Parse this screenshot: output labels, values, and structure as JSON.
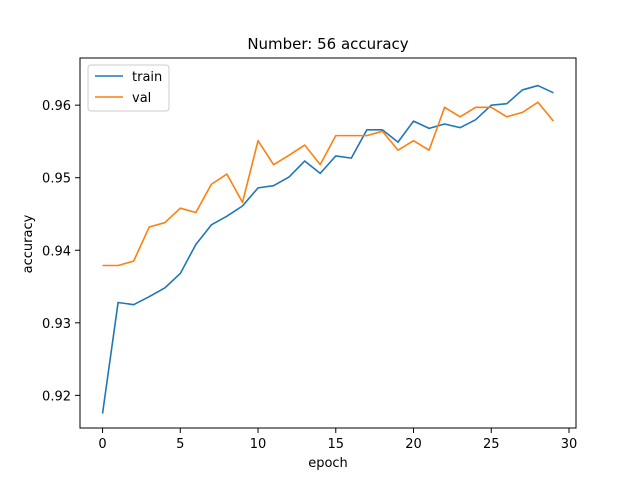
{
  "chart_data": {
    "type": "line",
    "title": "Number: 56 accuracy",
    "xlabel": "epoch",
    "ylabel": "accuracy",
    "xlim": [
      -1.45,
      30.45
    ],
    "ylim": [
      0.9155,
      0.9665
    ],
    "xticks": [
      0,
      5,
      10,
      15,
      20,
      25,
      30
    ],
    "yticks": [
      0.92,
      0.93,
      0.94,
      0.95,
      0.96
    ],
    "x": [
      0,
      1,
      2,
      3,
      4,
      5,
      6,
      7,
      8,
      9,
      10,
      11,
      12,
      13,
      14,
      15,
      16,
      17,
      18,
      19,
      20,
      21,
      22,
      23,
      24,
      25,
      26,
      27,
      28,
      29
    ],
    "series": [
      {
        "name": "train",
        "color": "#1f77b4",
        "values": [
          0.9175,
          0.9328,
          0.9325,
          0.9336,
          0.9348,
          0.9368,
          0.9408,
          0.9435,
          0.9447,
          0.9461,
          0.9486,
          0.9489,
          0.9501,
          0.9523,
          0.9506,
          0.953,
          0.9527,
          0.9566,
          0.9566,
          0.9549,
          0.9578,
          0.9568,
          0.9574,
          0.9569,
          0.958,
          0.96,
          0.9602,
          0.9621,
          0.9627,
          0.9617
        ]
      },
      {
        "name": "val",
        "color": "#ff7f0e",
        "values": [
          0.9379,
          0.9379,
          0.9385,
          0.9432,
          0.9438,
          0.9458,
          0.9452,
          0.9491,
          0.9505,
          0.9466,
          0.9551,
          0.9518,
          0.9531,
          0.9545,
          0.9518,
          0.9558,
          0.9558,
          0.9558,
          0.9564,
          0.9538,
          0.9551,
          0.9538,
          0.9597,
          0.9584,
          0.9597,
          0.9597,
          0.9584,
          0.959,
          0.9604,
          0.9578
        ]
      }
    ],
    "legend_position": "top-left",
    "grid": false
  }
}
